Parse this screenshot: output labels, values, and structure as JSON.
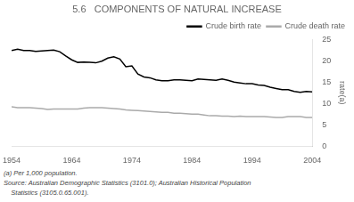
{
  "chart_data": {
    "type": "line",
    "title": "5.6   COMPONENTS OF NATURAL INCREASE",
    "ylabel": "rate(a)",
    "annotations": [
      "(a) Per 1,000 population.",
      "Source: Australian Demographic Statistics (3101.0); Australian Historical Population",
      "    Statistics (3105.0.65.001)."
    ],
    "x": [
      1954,
      1955,
      1956,
      1957,
      1958,
      1959,
      1960,
      1961,
      1962,
      1963,
      1964,
      1965,
      1966,
      1967,
      1968,
      1969,
      1970,
      1971,
      1972,
      1973,
      1974,
      1975,
      1976,
      1977,
      1978,
      1979,
      1980,
      1981,
      1982,
      1983,
      1984,
      1985,
      1986,
      1987,
      1988,
      1989,
      1990,
      1991,
      1992,
      1993,
      1994,
      1995,
      1996,
      1997,
      1998,
      1999,
      2000,
      2001,
      2002,
      2003,
      2004
    ],
    "series": [
      {
        "name": "Crude birth rate",
        "color": "#000000",
        "values": [
          22.4,
          22.7,
          22.4,
          22.4,
          22.2,
          22.3,
          22.4,
          22.5,
          22.1,
          21.1,
          20.2,
          19.6,
          19.7,
          19.6,
          19.5,
          19.9,
          20.6,
          20.9,
          20.4,
          18.6,
          18.8,
          16.9,
          16.2,
          16.0,
          15.5,
          15.3,
          15.3,
          15.5,
          15.5,
          15.4,
          15.3,
          15.7,
          15.6,
          15.5,
          15.4,
          15.7,
          15.4,
          15.0,
          14.8,
          14.6,
          14.6,
          14.3,
          14.2,
          13.8,
          13.5,
          13.2,
          13.2,
          12.8,
          12.6,
          12.8,
          12.7
        ]
      },
      {
        "name": "Crude death rate",
        "color": "#aaaaaa",
        "values": [
          9.2,
          9.0,
          9.0,
          9.0,
          8.9,
          8.8,
          8.6,
          8.7,
          8.7,
          8.7,
          8.7,
          8.7,
          8.9,
          9.0,
          9.0,
          9.0,
          8.9,
          8.8,
          8.7,
          8.5,
          8.4,
          8.3,
          8.2,
          8.1,
          8.0,
          7.9,
          7.9,
          7.7,
          7.7,
          7.6,
          7.5,
          7.5,
          7.3,
          7.1,
          7.1,
          7.0,
          7.0,
          6.9,
          7.0,
          6.9,
          6.9,
          6.9,
          6.9,
          6.8,
          6.7,
          6.7,
          6.9,
          6.9,
          6.9,
          6.7,
          6.7
        ]
      }
    ],
    "xlim": [
      1954,
      2004
    ],
    "ylim": [
      0,
      25
    ],
    "xticks": [
      1954,
      1964,
      1974,
      1984,
      1994,
      2004
    ],
    "yticks": [
      0,
      5,
      10,
      15,
      20,
      25
    ],
    "grid": false,
    "legend": "upper right"
  }
}
